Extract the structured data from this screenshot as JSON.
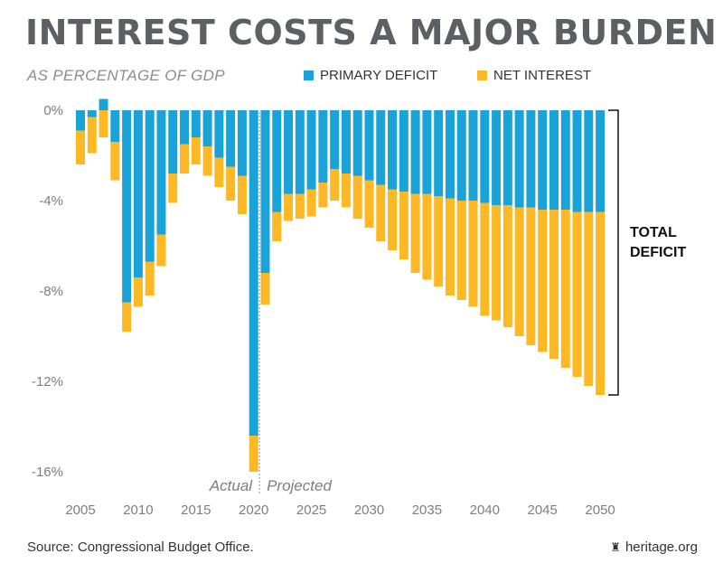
{
  "title": "INTEREST COSTS A MAJOR BURDEN",
  "subtitle": "AS PERCENTAGE OF GDP",
  "legend": [
    {
      "label": "PRIMARY DEFICIT",
      "color": "#1aa3d9"
    },
    {
      "label": "NET INTEREST",
      "color": "#fdb825"
    }
  ],
  "annotations": {
    "total_deficit_line1": "TOTAL",
    "total_deficit_line2": "DEFICIT",
    "actual": "Actual",
    "projected": "Projected"
  },
  "source": "Source: Congressional Budget Office.",
  "brand": "heritage.org",
  "chart_data": {
    "type": "bar",
    "stacked": true,
    "title": "INTEREST COSTS A MAJOR BURDEN",
    "subtitle": "AS PERCENTAGE OF GDP",
    "x_ticks": [
      2005,
      2010,
      2015,
      2020,
      2025,
      2030,
      2035,
      2040,
      2045,
      2050
    ],
    "y_ticks": [
      0,
      -4,
      -8,
      -12,
      -16
    ],
    "y_tick_labels": [
      "0%",
      "-4%",
      "-8%",
      "-12%",
      "-16%"
    ],
    "ylim": [
      -16,
      0.5
    ],
    "divider_after": 2020,
    "categories": [
      2005,
      2006,
      2007,
      2008,
      2009,
      2010,
      2011,
      2012,
      2013,
      2014,
      2015,
      2016,
      2017,
      2018,
      2019,
      2020,
      2021,
      2022,
      2023,
      2024,
      2025,
      2026,
      2027,
      2028,
      2029,
      2030,
      2031,
      2032,
      2033,
      2034,
      2035,
      2036,
      2037,
      2038,
      2039,
      2040,
      2041,
      2042,
      2043,
      2044,
      2045,
      2046,
      2047,
      2048,
      2049,
      2050
    ],
    "series": [
      {
        "name": "PRIMARY DEFICIT",
        "color": "#1aa3d9",
        "values": [
          -0.9,
          -0.3,
          0.5,
          -1.4,
          -8.5,
          -7.4,
          -6.7,
          -5.5,
          -2.8,
          -1.5,
          -1.2,
          -1.6,
          -2.1,
          -2.5,
          -2.9,
          -14.4,
          -7.2,
          -4.5,
          -3.7,
          -3.7,
          -3.5,
          -3.2,
          -2.6,
          -2.8,
          -2.9,
          -3.1,
          -3.3,
          -3.5,
          -3.6,
          -3.7,
          -3.7,
          -3.8,
          -3.9,
          -4.0,
          -4.0,
          -4.1,
          -4.2,
          -4.2,
          -4.3,
          -4.3,
          -4.4,
          -4.4,
          -4.4,
          -4.5,
          -4.5,
          -4.5
        ]
      },
      {
        "name": "NET INTEREST",
        "color": "#fdb825",
        "values": [
          -1.5,
          -1.6,
          -1.2,
          -1.7,
          -1.3,
          -1.3,
          -1.5,
          -1.4,
          -1.3,
          -1.3,
          -1.2,
          -1.3,
          -1.3,
          -1.5,
          -1.7,
          -1.6,
          -1.4,
          -1.3,
          -1.2,
          -1.1,
          -1.2,
          -1.1,
          -1.4,
          -1.5,
          -1.9,
          -2.1,
          -2.5,
          -2.7,
          -3.0,
          -3.5,
          -3.8,
          -4.0,
          -4.3,
          -4.4,
          -4.7,
          -5.0,
          -5.1,
          -5.4,
          -5.7,
          -6.1,
          -6.3,
          -6.6,
          -7.0,
          -7.3,
          -7.7,
          -8.1
        ]
      }
    ]
  }
}
